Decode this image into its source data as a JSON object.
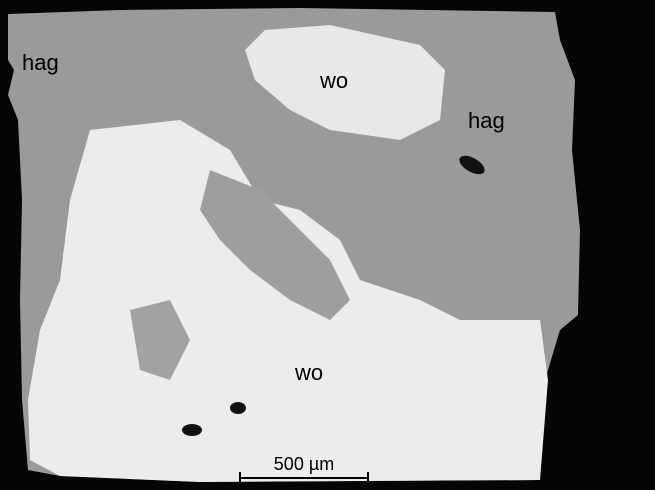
{
  "labels": [
    "hag",
    "wo",
    "hag",
    "wo"
  ],
  "scale_bar": {
    "label": "500 µm"
  }
}
